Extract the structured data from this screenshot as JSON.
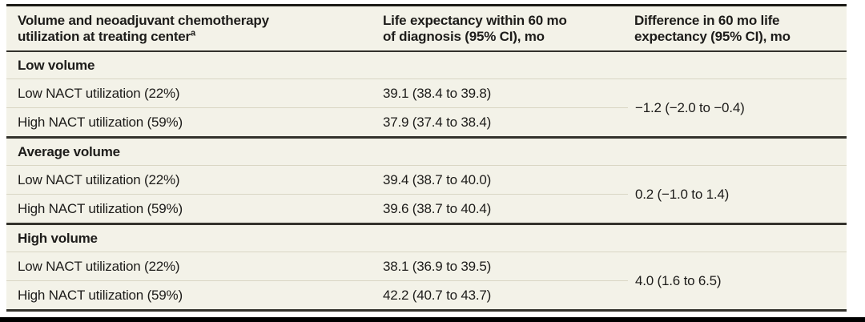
{
  "table": {
    "columns": [
      {
        "line1": "Volume and neoadjuvant chemotherapy",
        "line2": "utilization at treating center",
        "footnote": "a"
      },
      {
        "line1": "Life expectancy within 60 mo",
        "line2": "of diagnosis (95% CI), mo"
      },
      {
        "line1": "Difference in 60 mo life",
        "line2": "expectancy (95% CI), mo"
      }
    ],
    "sections": [
      {
        "title": "Low volume",
        "rows": [
          {
            "label": "Low NACT utilization (22%)",
            "life_expectancy": "39.1 (38.4 to 39.8)"
          },
          {
            "label": "High NACT utilization (59%)",
            "life_expectancy": "37.9 (37.4 to 38.4)"
          }
        ],
        "difference": "−1.2 (−2.0 to −0.4)"
      },
      {
        "title": "Average volume",
        "rows": [
          {
            "label": "Low NACT utilization (22%)",
            "life_expectancy": "39.4 (38.7 to 40.0)"
          },
          {
            "label": "High NACT utilization (59%)",
            "life_expectancy": "39.6 (38.7 to 40.4)"
          }
        ],
        "difference": "0.2 (−1.0 to 1.4)"
      },
      {
        "title": "High volume",
        "rows": [
          {
            "label": "Low NACT utilization (22%)",
            "life_expectancy": "38.1 (36.9 to 39.5)"
          },
          {
            "label": "High NACT utilization (59%)",
            "life_expectancy": "42.2 (40.7 to 43.7)"
          }
        ],
        "difference": "4.0 (1.6 to 6.5)"
      }
    ]
  },
  "colors": {
    "table_background": "#f3f2e8",
    "rule_dark": "#33322c",
    "rule_top": "#1b1a16",
    "row_separator": "#d9d6c4",
    "text": "#1d1c1a",
    "bottom_bar": "#000000",
    "page_background": "#ffffff"
  }
}
